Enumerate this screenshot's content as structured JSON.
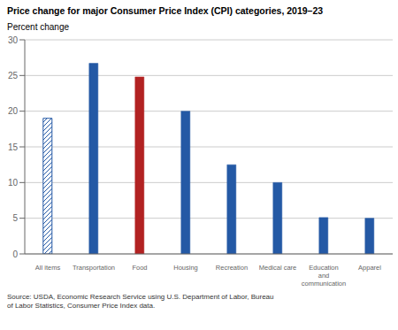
{
  "chart_data": {
    "type": "bar",
    "title": "Price change for major Consumer Price Index (CPI) categories, 2019–23",
    "ylabel": "Percent change",
    "categories": [
      "All items",
      "Transportation",
      "Food",
      "Housing",
      "Recreation",
      "Medical care",
      "Education\nand\ncommunication",
      "Apparel"
    ],
    "values": [
      19.0,
      26.7,
      24.8,
      20.0,
      12.5,
      10.0,
      5.1,
      5.0
    ],
    "colors": [
      "#ffffff",
      "#2459a5",
      "#b22222",
      "#2459a5",
      "#2459a5",
      "#2459a5",
      "#2459a5",
      "#2459a5"
    ],
    "ylim": [
      0,
      30
    ],
    "yticks": [
      0,
      5,
      10,
      15,
      20,
      25,
      30
    ],
    "grid": true,
    "annotations": [
      "Source: USDA, Economic Research Service using U.S. Department of Labor, Bureau\nof Labor Statistics, Consumer Price Index data."
    ]
  }
}
